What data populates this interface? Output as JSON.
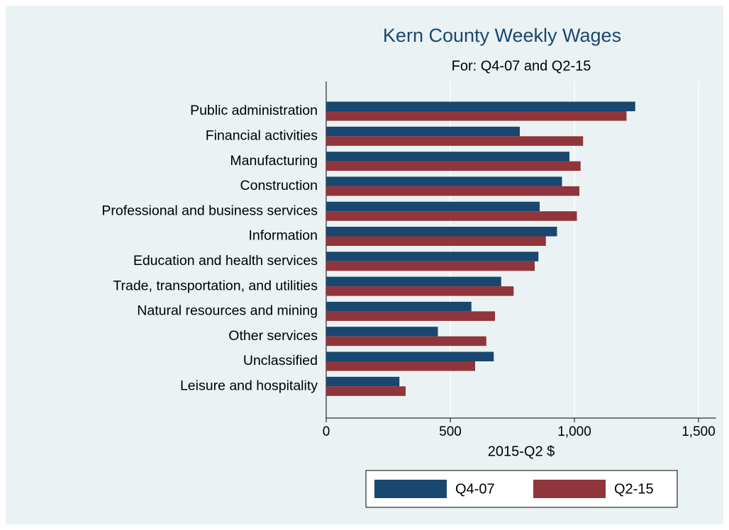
{
  "chart_data": {
    "type": "barh",
    "title": "Kern County Weekly Wages",
    "subtitle": "For: Q4-07 and Q2-15",
    "x_label": "2015-Q2 $",
    "categories": [
      "Public administration",
      "Financial activities",
      "Manufacturing",
      "Construction",
      "Professional and business services",
      "Information",
      "Education and health services",
      "Trade, transportation, and utilities",
      "Natural resources and mining",
      "Other services",
      "Unclassified",
      "Leisure and hospitality"
    ],
    "series": [
      {
        "name": "Q4-07",
        "color": "#1a476f",
        "values": [
          1245,
          780,
          980,
          950,
          860,
          930,
          855,
          705,
          585,
          450,
          675,
          295
        ]
      },
      {
        "name": "Q2-15",
        "color": "#90353b",
        "values": [
          1210,
          1035,
          1025,
          1020,
          1010,
          885,
          840,
          755,
          680,
          645,
          600,
          320
        ]
      }
    ],
    "xlim": [
      0,
      1570
    ],
    "xticks": [
      0,
      500,
      {
        "value": 1000,
        "label": "1,000"
      },
      {
        "value": 1500,
        "label": "1,500"
      }
    ],
    "grid": true,
    "legend": "bottom"
  }
}
